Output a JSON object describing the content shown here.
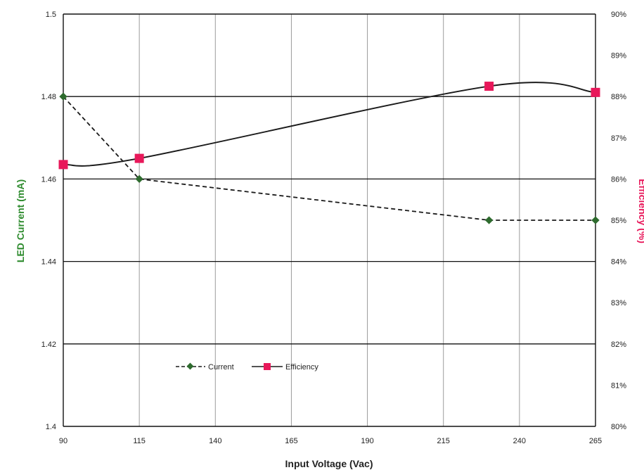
{
  "chart_data": {
    "type": "line",
    "xlabel": "Input Voltage (Vac)",
    "ylabel_left": "LED Current (mA)",
    "ylabel_right": "Efficiency (%)",
    "x_ticks": [
      "90",
      "115",
      "140",
      "165",
      "190",
      "215",
      "240",
      "265"
    ],
    "y_left_ticks": [
      "1.4",
      "1.42",
      "1.44",
      "1.46",
      "1.48",
      "1.5"
    ],
    "y_right_ticks": [
      "80%",
      "81%",
      "82%",
      "83%",
      "84%",
      "85%",
      "86%",
      "87%",
      "88%",
      "89%",
      "90%"
    ],
    "xlim": [
      90,
      265
    ],
    "ylim_left": [
      1.4,
      1.5
    ],
    "ylim_right": [
      80,
      90
    ],
    "grid": true,
    "legend_position": "lower-left-center",
    "series": [
      {
        "name": "Current",
        "axis": "left",
        "style": "dashed",
        "marker": "diamond",
        "color": "#2e6b2e",
        "x": [
          90,
          115,
          230,
          265
        ],
        "y": [
          1.48,
          1.46,
          1.45,
          1.45
        ]
      },
      {
        "name": "Efficiency",
        "axis": "right",
        "style": "solid",
        "marker": "square",
        "color": "#e8185a",
        "x": [
          90,
          115,
          230,
          265
        ],
        "y": [
          86.35,
          86.5,
          88.25,
          88.1
        ]
      }
    ]
  },
  "colors": {
    "left_title": "#2e8b2e",
    "right_title": "#e8185a",
    "current_line": "#1a1a1a",
    "efficiency_line": "#1a1a1a"
  }
}
